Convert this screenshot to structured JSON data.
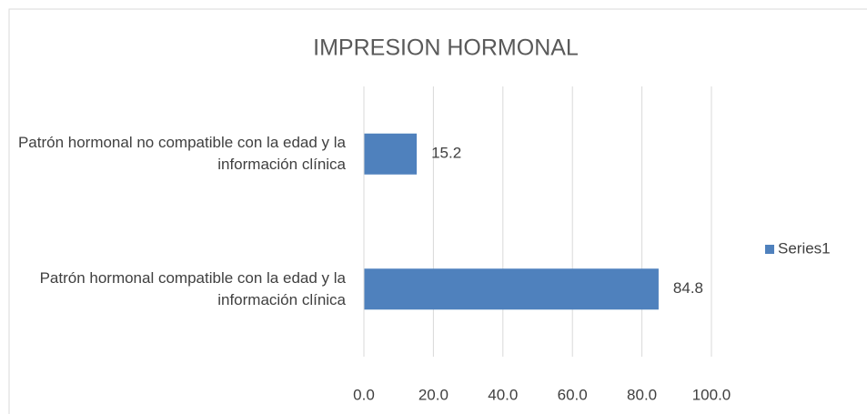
{
  "chart_data": {
    "type": "bar",
    "orientation": "horizontal",
    "title": "IMPRESION HORMONAL",
    "categories": [
      "Patrón hormonal no compatible con la edad y la información clínica",
      "Patrón hormonal compatible con la edad y la información clínica"
    ],
    "series": [
      {
        "name": "Series1",
        "color": "#4f81bd",
        "values": [
          15.2,
          84.8
        ]
      }
    ],
    "xlim": [
      0,
      100
    ],
    "xticks": [
      {
        "value": 0,
        "label": "0.0"
      },
      {
        "value": 20,
        "label": "20.0"
      },
      {
        "value": 40,
        "label": "40.0"
      },
      {
        "value": 60,
        "label": "60.0"
      },
      {
        "value": 80,
        "label": "80.0"
      },
      {
        "value": 100,
        "label": "100.0"
      }
    ],
    "grid": true,
    "legend": "right"
  }
}
